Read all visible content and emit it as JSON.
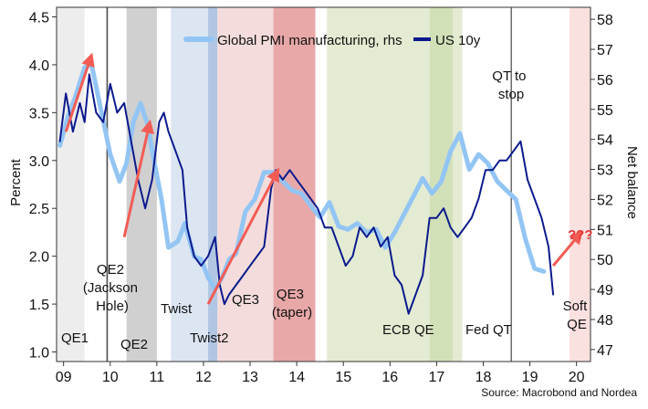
{
  "chart_data": {
    "type": "line",
    "title": "",
    "ylabel_left": "Percent",
    "ylabel_right": "Net balance",
    "source": "Source: Macrobond and Nordea",
    "x_range": [
      2008.85,
      2020.3
    ],
    "xticks": [
      {
        "x": 2009.0,
        "label": "09"
      },
      {
        "x": 2010.0,
        "label": "10"
      },
      {
        "x": 2011.0,
        "label": "11"
      },
      {
        "x": 2012.0,
        "label": "12"
      },
      {
        "x": 2013.0,
        "label": "13"
      },
      {
        "x": 2014.0,
        "label": "14"
      },
      {
        "x": 2015.0,
        "label": "15"
      },
      {
        "x": 2016.0,
        "label": "16"
      },
      {
        "x": 2017.0,
        "label": "17"
      },
      {
        "x": 2018.0,
        "label": "18"
      },
      {
        "x": 2019.0,
        "label": "19"
      },
      {
        "x": 2020.0,
        "label": "20"
      }
    ],
    "ylim_left": [
      0.9,
      4.6
    ],
    "yticks_left": [
      "1.0",
      "1.5",
      "2.0",
      "2.5",
      "3.0",
      "3.5",
      "4.0",
      "4.5"
    ],
    "ylim_right": [
      46.6,
      58.4
    ],
    "yticks_right": [
      "47",
      "48",
      "49",
      "50",
      "51",
      "52",
      "53",
      "54",
      "55",
      "56",
      "57",
      "58"
    ],
    "legend": {
      "position": "top-center",
      "entries": [
        {
          "label": "Global PMI manufacturing, rhs",
          "color": "#93c5f4"
        },
        {
          "label": "US 10y",
          "color": "#0b1a8c"
        }
      ]
    },
    "series": [
      {
        "name": "Global PMI manufacturing, rhs",
        "axis": "right",
        "color": "#93c5f4",
        "x": [
          2008.92,
          2009.1,
          2009.25,
          2009.45,
          2009.6,
          2009.8,
          2010.0,
          2010.2,
          2010.35,
          2010.5,
          2010.65,
          2010.8,
          2010.95,
          2011.1,
          2011.25,
          2011.45,
          2011.6,
          2011.8,
          2011.95,
          2012.1,
          2012.25,
          2012.4,
          2012.55,
          2012.7,
          2012.9,
          2013.1,
          2013.3,
          2013.5,
          2013.7,
          2013.9,
          2014.1,
          2014.3,
          2014.5,
          2014.7,
          2014.9,
          2015.1,
          2015.3,
          2015.5,
          2015.7,
          2015.9,
          2016.1,
          2016.3,
          2016.5,
          2016.7,
          2016.9,
          2017.1,
          2017.3,
          2017.5,
          2017.7,
          2017.9,
          2018.1,
          2018.3,
          2018.5,
          2018.7,
          2018.9,
          2019.1,
          2019.3
        ],
        "values": [
          53.8,
          54.8,
          55.4,
          56.4,
          56.5,
          55.0,
          53.5,
          52.6,
          53.2,
          54.6,
          55.2,
          54.5,
          53.2,
          52.0,
          50.4,
          50.6,
          51.2,
          50.1,
          50.0,
          49.4,
          49.0,
          49.4,
          50.0,
          50.2,
          51.6,
          52.0,
          52.9,
          52.9,
          52.6,
          52.3,
          52.2,
          51.8,
          51.4,
          51.9,
          51.1,
          51.0,
          51.2,
          50.9,
          51.0,
          50.4,
          50.9,
          51.5,
          52.1,
          52.7,
          52.2,
          52.6,
          53.6,
          54.2,
          53.0,
          53.5,
          53.2,
          52.6,
          52.3,
          52.0,
          50.7,
          49.7,
          49.6
        ]
      },
      {
        "name": "US 10y",
        "axis": "left",
        "color": "#0b1a8c",
        "x": [
          2008.92,
          2009.05,
          2009.2,
          2009.35,
          2009.45,
          2009.55,
          2009.7,
          2009.85,
          2010.0,
          2010.15,
          2010.3,
          2010.45,
          2010.6,
          2010.75,
          2010.9,
          2011.05,
          2011.15,
          2011.25,
          2011.4,
          2011.55,
          2011.65,
          2011.8,
          2011.95,
          2012.1,
          2012.25,
          2012.35,
          2012.45,
          2012.55,
          2012.7,
          2012.85,
          2013.0,
          2013.15,
          2013.3,
          2013.45,
          2013.55,
          2013.7,
          2013.85,
          2014.0,
          2014.15,
          2014.3,
          2014.45,
          2014.6,
          2014.75,
          2014.9,
          2015.05,
          2015.2,
          2015.35,
          2015.5,
          2015.65,
          2015.8,
          2015.95,
          2016.1,
          2016.25,
          2016.4,
          2016.55,
          2016.7,
          2016.85,
          2017.0,
          2017.15,
          2017.3,
          2017.45,
          2017.6,
          2017.75,
          2017.9,
          2018.05,
          2018.2,
          2018.35,
          2018.5,
          2018.65,
          2018.8,
          2018.95,
          2019.1,
          2019.25,
          2019.4,
          2019.5
        ],
        "values": [
          3.2,
          3.7,
          3.3,
          3.6,
          3.4,
          3.9,
          3.5,
          3.4,
          3.8,
          3.5,
          3.6,
          3.2,
          2.8,
          2.5,
          2.8,
          3.4,
          3.5,
          3.3,
          3.1,
          2.9,
          2.3,
          2.0,
          1.9,
          2.0,
          2.2,
          1.7,
          1.5,
          1.6,
          1.7,
          1.8,
          1.9,
          2.0,
          2.1,
          2.7,
          2.9,
          2.8,
          2.9,
          2.8,
          2.7,
          2.6,
          2.5,
          2.3,
          2.3,
          2.1,
          1.9,
          2.0,
          2.3,
          2.2,
          2.3,
          2.1,
          2.2,
          1.8,
          1.7,
          1.4,
          1.6,
          1.8,
          2.4,
          2.4,
          2.5,
          2.3,
          2.2,
          2.3,
          2.4,
          2.6,
          2.9,
          2.9,
          3.0,
          3.0,
          3.1,
          3.2,
          2.8,
          2.6,
          2.4,
          2.1,
          1.6
        ]
      }
    ],
    "periods": [
      {
        "label": "QE1",
        "start": 2008.85,
        "end": 2009.45,
        "color": "#ededed"
      },
      {
        "label": "QE2\n(Jackson\nHole)",
        "start": 2009.93,
        "end": 2009.96,
        "color": "#bdbdbd"
      },
      {
        "label": "QE2",
        "start": 2010.35,
        "end": 2011.0,
        "color": "#d0d0d0"
      },
      {
        "label": "Twist",
        "start": 2011.3,
        "end": 2012.1,
        "color": "#dce6f2"
      },
      {
        "label": "Twist2",
        "start": 2012.1,
        "end": 2012.3,
        "color": "#b0c6e2"
      },
      {
        "label": "QE3",
        "start": 2012.3,
        "end": 2013.5,
        "color": "#f4dcdc"
      },
      {
        "label": "QE3\n(taper)",
        "start": 2013.5,
        "end": 2014.4,
        "color": "#e8a8a8"
      },
      {
        "label": "ECB QE",
        "start": 2014.65,
        "end": 2016.85,
        "color": "#e3ebd2"
      },
      {
        "label": "ECB QE",
        "start": 2016.85,
        "end": 2017.35,
        "color": "#d2e0b8"
      },
      {
        "label": "Fed QT",
        "start": 2017.35,
        "end": 2017.55,
        "color": "#e3ebd2"
      },
      {
        "label": "Soft\nQE",
        "start": 2019.85,
        "end": 2020.3,
        "color": "#fbe0e0"
      }
    ],
    "vlines": [
      2009.93,
      2018.6
    ],
    "arrows": [
      {
        "from": [
          2009.05,
          3.3
        ],
        "to": [
          2009.6,
          4.1
        ]
      },
      {
        "from": [
          2010.3,
          2.2
        ],
        "to": [
          2010.85,
          3.4
        ]
      },
      {
        "from": [
          2012.1,
          1.5
        ],
        "to": [
          2013.6,
          2.9
        ]
      },
      {
        "from": [
          2019.5,
          1.9
        ],
        "to": [
          2020.1,
          2.25
        ]
      }
    ],
    "annotations": {
      "qe1": "QE1",
      "qe2_jh": [
        "QE2",
        "(Jackson",
        "Hole)"
      ],
      "qe2": "QE2",
      "twist": "Twist",
      "twist2": "Twist2",
      "qe3": "QE3",
      "qe3_taper": [
        "QE3",
        "(taper)"
      ],
      "ecb_qe": "ECB QE",
      "fed_qt": "Fed QT",
      "qt_to_stop": [
        "QT to",
        "stop"
      ],
      "qqq": "???",
      "soft_qe": [
        "Soft",
        "QE"
      ]
    }
  }
}
